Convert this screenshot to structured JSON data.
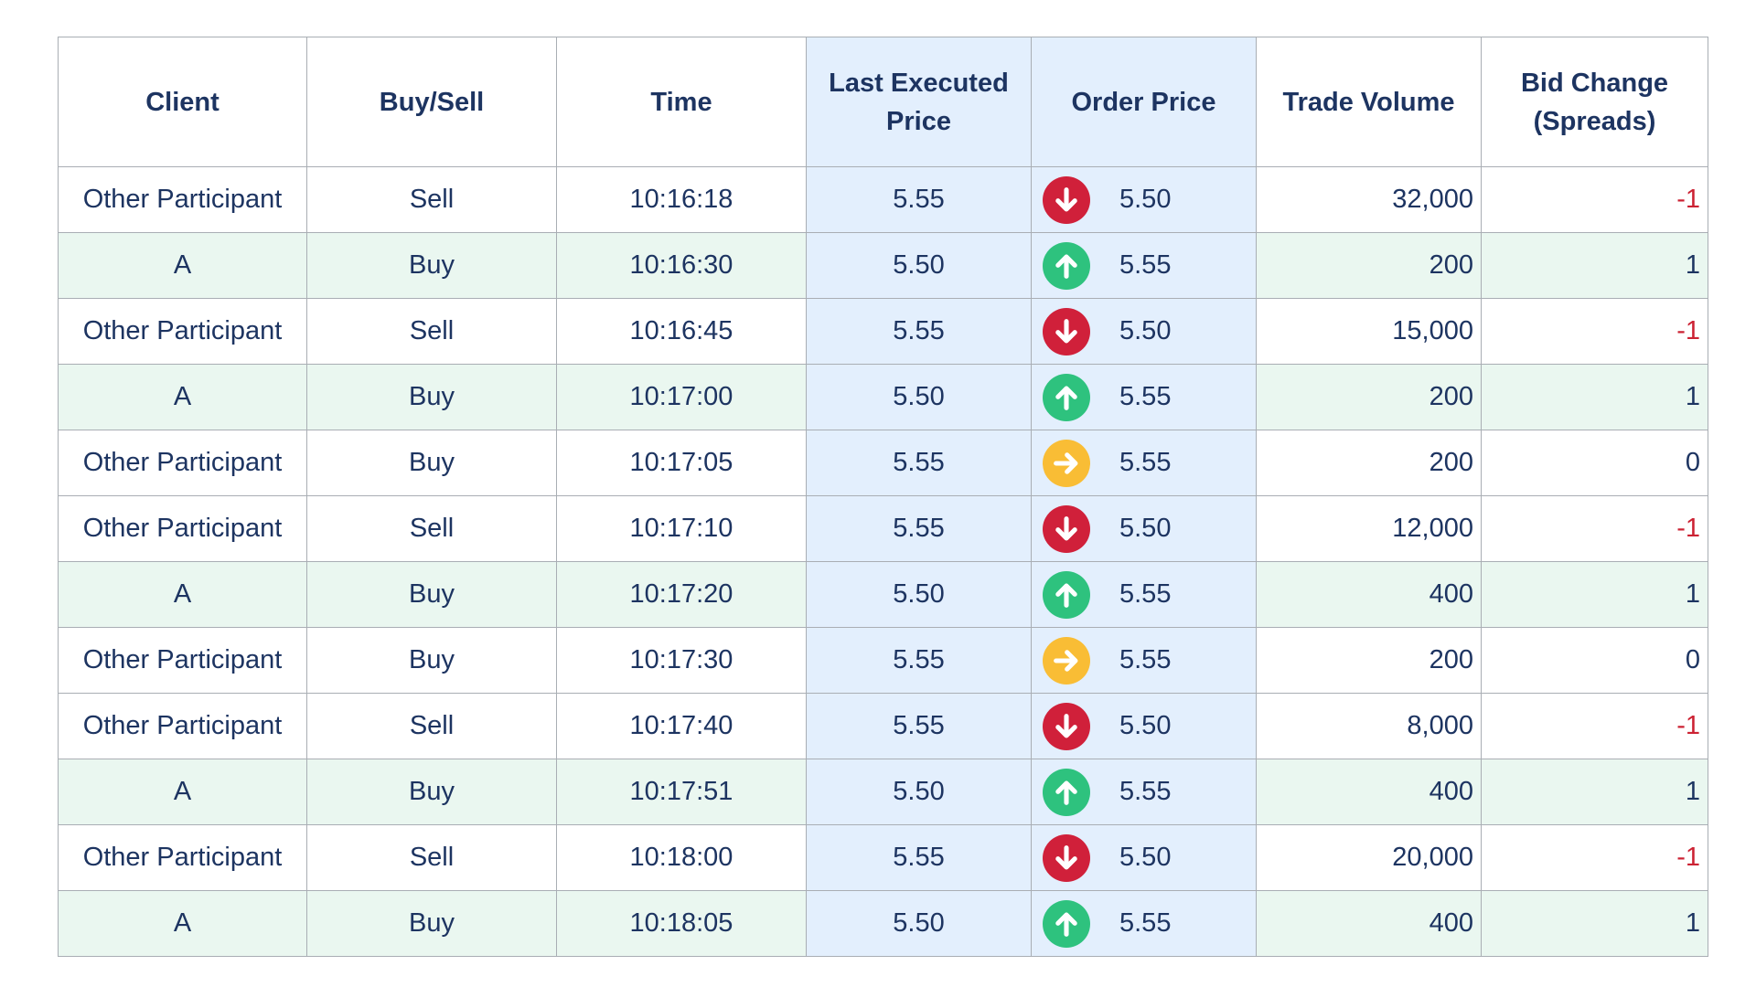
{
  "colors": {
    "header_text": "#1d3461",
    "highlight_column_bg": "#e3effd",
    "green_row_bg": "#eaf7f0",
    "negative_text": "#cc2233",
    "down_icon": "#d0203a",
    "up_icon": "#2ec27e",
    "flat_icon": "#f9bd35"
  },
  "headers": {
    "client": "Client",
    "buy_sell": "Buy/Sell",
    "time": "Time",
    "last_executed_line1": "Last Executed",
    "last_executed_line2": "Price",
    "order_price": "Order Price",
    "trade_volume": "Trade Volume",
    "bid_change_line1": "Bid Change",
    "bid_change_line2": "(Spreads)"
  },
  "rows": [
    {
      "client": "Other Participant",
      "side": "Sell",
      "time": "10:16:18",
      "last": "5.55",
      "icon": "arrow-down-icon",
      "order": "5.50",
      "volume": "32,000",
      "bid_change": "-1"
    },
    {
      "client": "A",
      "side": "Buy",
      "time": "10:16:30",
      "last": "5.50",
      "icon": "arrow-up-icon",
      "order": "5.55",
      "volume": "200",
      "bid_change": "1"
    },
    {
      "client": "Other Participant",
      "side": "Sell",
      "time": "10:16:45",
      "last": "5.55",
      "icon": "arrow-down-icon",
      "order": "5.50",
      "volume": "15,000",
      "bid_change": "-1"
    },
    {
      "client": "A",
      "side": "Buy",
      "time": "10:17:00",
      "last": "5.50",
      "icon": "arrow-up-icon",
      "order": "5.55",
      "volume": "200",
      "bid_change": "1"
    },
    {
      "client": "Other Participant",
      "side": "Buy",
      "time": "10:17:05",
      "last": "5.55",
      "icon": "arrow-right-icon",
      "order": "5.55",
      "volume": "200",
      "bid_change": "0"
    },
    {
      "client": "Other Participant",
      "side": "Sell",
      "time": "10:17:10",
      "last": "5.55",
      "icon": "arrow-down-icon",
      "order": "5.50",
      "volume": "12,000",
      "bid_change": "-1"
    },
    {
      "client": "A",
      "side": "Buy",
      "time": "10:17:20",
      "last": "5.50",
      "icon": "arrow-up-icon",
      "order": "5.55",
      "volume": "400",
      "bid_change": "1"
    },
    {
      "client": "Other Participant",
      "side": "Buy",
      "time": "10:17:30",
      "last": "5.55",
      "icon": "arrow-right-icon",
      "order": "5.55",
      "volume": "200",
      "bid_change": "0"
    },
    {
      "client": "Other Participant",
      "side": "Sell",
      "time": "10:17:40",
      "last": "5.55",
      "icon": "arrow-down-icon",
      "order": "5.50",
      "volume": "8,000",
      "bid_change": "-1"
    },
    {
      "client": "A",
      "side": "Buy",
      "time": "10:17:51",
      "last": "5.50",
      "icon": "arrow-up-icon",
      "order": "5.55",
      "volume": "400",
      "bid_change": "1"
    },
    {
      "client": "Other Participant",
      "side": "Sell",
      "time": "10:18:00",
      "last": "5.55",
      "icon": "arrow-down-icon",
      "order": "5.50",
      "volume": "20,000",
      "bid_change": "-1"
    },
    {
      "client": "A",
      "side": "Buy",
      "time": "10:18:05",
      "last": "5.50",
      "icon": "arrow-up-icon",
      "order": "5.55",
      "volume": "400",
      "bid_change": "1"
    }
  ]
}
